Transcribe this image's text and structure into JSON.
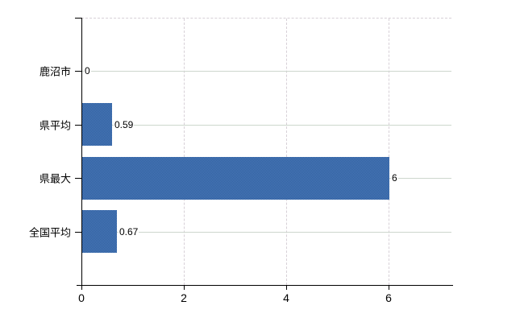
{
  "chart_data": {
    "type": "bar",
    "orientation": "horizontal",
    "title": "",
    "xlabel": "",
    "ylabel": "",
    "categories": [
      "鹿沼市",
      "県平均",
      "県最大",
      "全国平均"
    ],
    "values": [
      0,
      0.59,
      6,
      0.67
    ],
    "value_labels": [
      "0",
      "0.59",
      "6",
      "0.67"
    ],
    "x_ticks": [
      0,
      2,
      4,
      6
    ],
    "x_tick_labels": [
      "0",
      "2",
      "4",
      "6"
    ],
    "xlim": [
      0,
      7.26
    ],
    "grid": true,
    "legend": false,
    "bar_color": "#3c6dae",
    "horizontal_gridline_color": "#cdd7cd",
    "vertical_gridline_color": "#d7d0d7",
    "axis_color": "#000000",
    "text_color": "#000000",
    "background_color": "#ffffff"
  }
}
